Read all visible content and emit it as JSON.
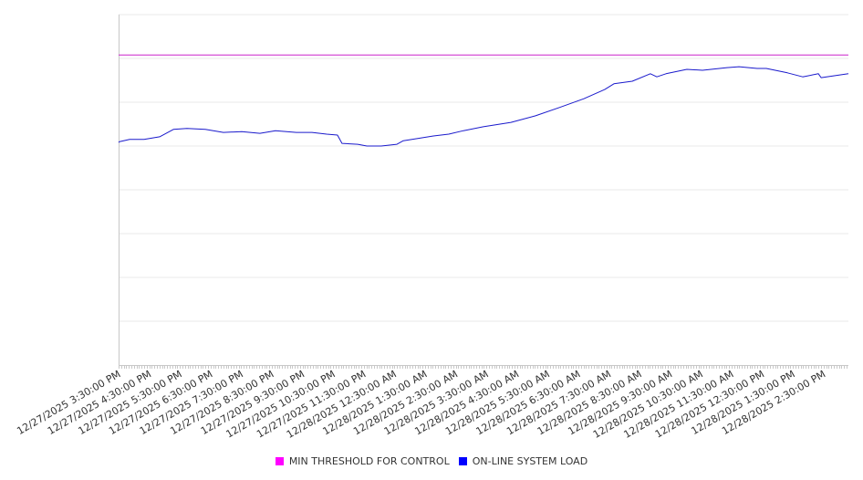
{
  "chart_data": {
    "type": "line",
    "title": "",
    "xlabel": "",
    "ylabel": "",
    "x_unit": "hours since 12/27/2025 3:30:00 PM",
    "xlim": [
      0,
      23.81
    ],
    "ylim": [
      0,
      8
    ],
    "y_gridlines": [
      1,
      2,
      3,
      4,
      5,
      6,
      7,
      8
    ],
    "y_tick_labels_shown": false,
    "grid": true,
    "legend_position": "bottom",
    "x_tick_labels": [
      "12/27/2025 3:30:00 PM",
      "12/27/2025 4:30:00 PM",
      "12/27/2025 5:30:00 PM",
      "12/27/2025 6:30:00 PM",
      "12/27/2025 7:30:00 PM",
      "12/27/2025 8:30:00 PM",
      "12/27/2025 9:30:00 PM",
      "12/27/2025 10:30:00 PM",
      "12/27/2025 11:30:00 PM",
      "12/28/2025 12:30:00 AM",
      "12/28/2025 1:30:00 AM",
      "12/28/2025 2:30:00 AM",
      "12/28/2025 3:30:00 AM",
      "12/28/2025 4:30:00 AM",
      "12/28/2025 5:30:00 AM",
      "12/28/2025 6:30:00 AM",
      "12/28/2025 7:30:00 AM",
      "12/28/2025 8:30:00 AM",
      "12/28/2025 9:30:00 AM",
      "12/28/2025 10:30:00 AM",
      "12/28/2025 11:30:00 AM",
      "12/28/2025 12:30:00 PM",
      "12/28/2025 1:30:00 PM",
      "12/28/2025 2:30:00 PM"
    ],
    "series": [
      {
        "name": "MIN THRESHOLD FOR CONTROL",
        "color": "#ff00ff",
        "line_color": "#cc22cc",
        "x": [
          0,
          23.81
        ],
        "values": [
          7.08,
          7.08
        ]
      },
      {
        "name": "ON-LINE SYSTEM LOAD",
        "color": "#0000ff",
        "line_color": "#1a1acc",
        "x": [
          0,
          0.03,
          0.36,
          0.83,
          1.34,
          1.79,
          2.23,
          2.83,
          3.42,
          4.02,
          4.61,
          5.12,
          5.8,
          6.31,
          6.79,
          7.14,
          7.29,
          7.8,
          8.1,
          8.57,
          9.08,
          9.29,
          9.76,
          10.27,
          10.77,
          11.25,
          11.9,
          12.8,
          13.6,
          14.38,
          15.18,
          15.86,
          16.16,
          16.76,
          17.35,
          17.56,
          17.86,
          18.54,
          19.05,
          19.85,
          20.24,
          20.83,
          21.13,
          21.82,
          22.32,
          22.83,
          22.92,
          23.3,
          23.81
        ],
        "values": [
          5.08,
          5.1,
          5.15,
          5.15,
          5.21,
          5.38,
          5.4,
          5.38,
          5.31,
          5.33,
          5.29,
          5.35,
          5.31,
          5.31,
          5.27,
          5.25,
          5.06,
          5.04,
          5.0,
          5.0,
          5.04,
          5.12,
          5.17,
          5.23,
          5.27,
          5.35,
          5.44,
          5.54,
          5.69,
          5.88,
          6.08,
          6.29,
          6.42,
          6.48,
          6.65,
          6.58,
          6.65,
          6.75,
          6.73,
          6.79,
          6.81,
          6.77,
          6.77,
          6.67,
          6.58,
          6.65,
          6.56,
          6.6,
          6.65
        ]
      }
    ]
  }
}
